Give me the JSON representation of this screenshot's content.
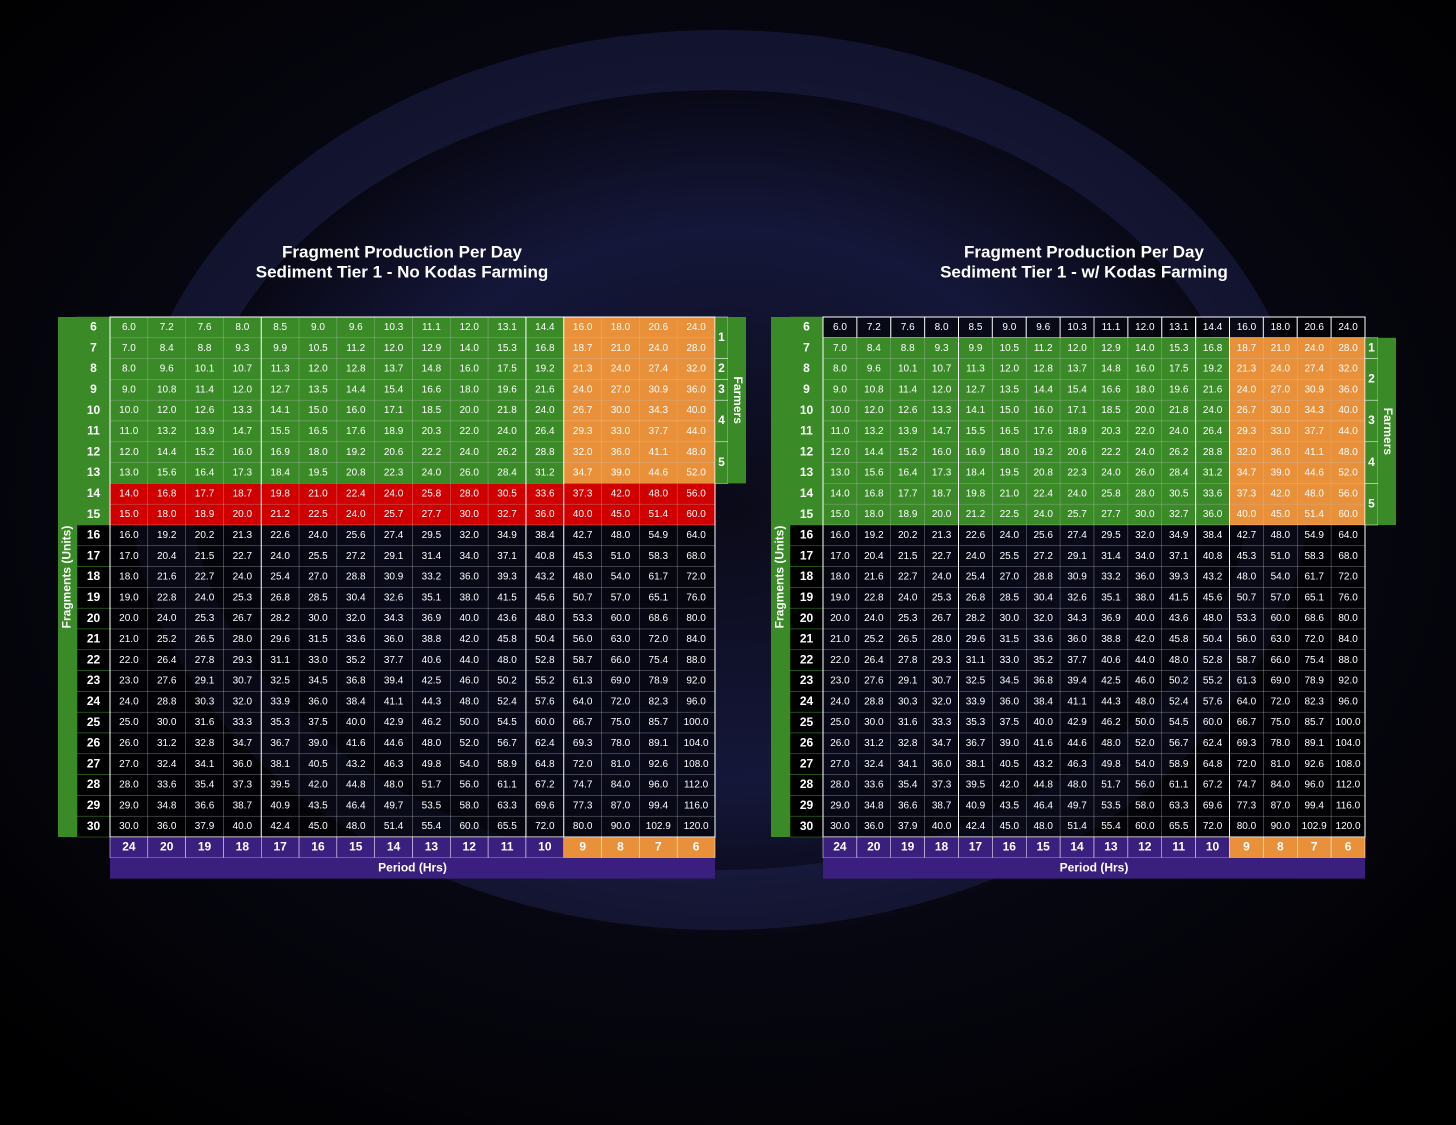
{
  "tables": [
    {
      "title": "Fragment Production Per Day",
      "subtitle": "Sediment Tier 1 - No Kodas Farming",
      "y_axis_label": "Fragments (Units)",
      "x_axis_label": "Period (Hrs)",
      "side_label": "Farmers",
      "farmer_levels": [
        1,
        2,
        3,
        4,
        5
      ],
      "periods": [
        24,
        20,
        19,
        18,
        17,
        16,
        15,
        14,
        13,
        12,
        11,
        10,
        9,
        8,
        7,
        6
      ],
      "fragments": [
        6,
        7,
        8,
        9,
        10,
        11,
        12,
        13,
        14,
        15,
        16,
        17,
        18,
        19,
        20,
        21,
        22,
        23,
        24,
        25,
        26,
        27,
        28,
        29,
        30
      ],
      "cells": [
        [
          "6.0",
          "7.2",
          "7.6",
          "8.0",
          "8.5",
          "9.0",
          "9.6",
          "10.3",
          "11.1",
          "12.0",
          "13.1",
          "14.4",
          "16.0",
          "18.0",
          "20.6",
          "24.0"
        ],
        [
          "7.0",
          "8.4",
          "8.8",
          "9.3",
          "9.9",
          "10.5",
          "11.2",
          "12.0",
          "12.9",
          "14.0",
          "15.3",
          "16.8",
          "18.7",
          "21.0",
          "24.0",
          "28.0"
        ],
        [
          "8.0",
          "9.6",
          "10.1",
          "10.7",
          "11.3",
          "12.0",
          "12.8",
          "13.7",
          "14.8",
          "16.0",
          "17.5",
          "19.2",
          "21.3",
          "24.0",
          "27.4",
          "32.0"
        ],
        [
          "9.0",
          "10.8",
          "11.4",
          "12.0",
          "12.7",
          "13.5",
          "14.4",
          "15.4",
          "16.6",
          "18.0",
          "19.6",
          "21.6",
          "24.0",
          "27.0",
          "30.9",
          "36.0"
        ],
        [
          "10.0",
          "12.0",
          "12.6",
          "13.3",
          "14.1",
          "15.0",
          "16.0",
          "17.1",
          "18.5",
          "20.0",
          "21.8",
          "24.0",
          "26.7",
          "30.0",
          "34.3",
          "40.0"
        ],
        [
          "11.0",
          "13.2",
          "13.9",
          "14.7",
          "15.5",
          "16.5",
          "17.6",
          "18.9",
          "20.3",
          "22.0",
          "24.0",
          "26.4",
          "29.3",
          "33.0",
          "37.7",
          "44.0"
        ],
        [
          "12.0",
          "14.4",
          "15.2",
          "16.0",
          "16.9",
          "18.0",
          "19.2",
          "20.6",
          "22.2",
          "24.0",
          "26.2",
          "28.8",
          "32.0",
          "36.0",
          "41.1",
          "48.0"
        ],
        [
          "13.0",
          "15.6",
          "16.4",
          "17.3",
          "18.4",
          "19.5",
          "20.8",
          "22.3",
          "24.0",
          "26.0",
          "28.4",
          "31.2",
          "34.7",
          "39.0",
          "44.6",
          "52.0"
        ],
        [
          "14.0",
          "16.8",
          "17.7",
          "18.7",
          "19.8",
          "21.0",
          "22.4",
          "24.0",
          "25.8",
          "28.0",
          "30.5",
          "33.6",
          "37.3",
          "42.0",
          "48.0",
          "56.0"
        ],
        [
          "15.0",
          "18.0",
          "18.9",
          "20.0",
          "21.2",
          "22.5",
          "24.0",
          "25.7",
          "27.7",
          "30.0",
          "32.7",
          "36.0",
          "40.0",
          "45.0",
          "51.4",
          "60.0"
        ],
        [
          "16.0",
          "19.2",
          "20.2",
          "21.3",
          "22.6",
          "24.0",
          "25.6",
          "27.4",
          "29.5",
          "32.0",
          "34.9",
          "38.4",
          "42.7",
          "48.0",
          "54.9",
          "64.0"
        ],
        [
          "17.0",
          "20.4",
          "21.5",
          "22.7",
          "24.0",
          "25.5",
          "27.2",
          "29.1",
          "31.4",
          "34.0",
          "37.1",
          "40.8",
          "45.3",
          "51.0",
          "58.3",
          "68.0"
        ],
        [
          "18.0",
          "21.6",
          "22.7",
          "24.0",
          "25.4",
          "27.0",
          "28.8",
          "30.9",
          "33.2",
          "36.0",
          "39.3",
          "43.2",
          "48.0",
          "54.0",
          "61.7",
          "72.0"
        ],
        [
          "19.0",
          "22.8",
          "24.0",
          "25.3",
          "26.8",
          "28.5",
          "30.4",
          "32.6",
          "35.1",
          "38.0",
          "41.5",
          "45.6",
          "50.7",
          "57.0",
          "65.1",
          "76.0"
        ],
        [
          "20.0",
          "24.0",
          "25.3",
          "26.7",
          "28.2",
          "30.0",
          "32.0",
          "34.3",
          "36.9",
          "40.0",
          "43.6",
          "48.0",
          "53.3",
          "60.0",
          "68.6",
          "80.0"
        ],
        [
          "21.0",
          "25.2",
          "26.5",
          "28.0",
          "29.6",
          "31.5",
          "33.6",
          "36.0",
          "38.8",
          "42.0",
          "45.8",
          "50.4",
          "56.0",
          "63.0",
          "72.0",
          "84.0"
        ],
        [
          "22.0",
          "26.4",
          "27.8",
          "29.3",
          "31.1",
          "33.0",
          "35.2",
          "37.7",
          "40.6",
          "44.0",
          "48.0",
          "52.8",
          "58.7",
          "66.0",
          "75.4",
          "88.0"
        ],
        [
          "23.0",
          "27.6",
          "29.1",
          "30.7",
          "32.5",
          "34.5",
          "36.8",
          "39.4",
          "42.5",
          "46.0",
          "50.2",
          "55.2",
          "61.3",
          "69.0",
          "78.9",
          "92.0"
        ],
        [
          "24.0",
          "28.8",
          "30.3",
          "32.0",
          "33.9",
          "36.0",
          "38.4",
          "41.1",
          "44.3",
          "48.0",
          "52.4",
          "57.6",
          "64.0",
          "72.0",
          "82.3",
          "96.0"
        ],
        [
          "25.0",
          "30.0",
          "31.6",
          "33.3",
          "35.3",
          "37.5",
          "40.0",
          "42.9",
          "46.2",
          "50.0",
          "54.5",
          "60.0",
          "66.7",
          "75.0",
          "85.7",
          "100.0"
        ],
        [
          "26.0",
          "31.2",
          "32.8",
          "34.7",
          "36.7",
          "39.0",
          "41.6",
          "44.6",
          "48.0",
          "52.0",
          "56.7",
          "62.4",
          "69.3",
          "78.0",
          "89.1",
          "104.0"
        ],
        [
          "27.0",
          "32.4",
          "34.1",
          "36.0",
          "38.1",
          "40.5",
          "43.2",
          "46.3",
          "49.8",
          "54.0",
          "58.9",
          "64.8",
          "72.0",
          "81.0",
          "92.6",
          "108.0"
        ],
        [
          "28.0",
          "33.6",
          "35.4",
          "37.3",
          "39.5",
          "42.0",
          "44.8",
          "48.0",
          "51.7",
          "56.0",
          "61.1",
          "67.2",
          "74.7",
          "84.0",
          "96.0",
          "112.0"
        ],
        [
          "29.0",
          "34.8",
          "36.6",
          "38.7",
          "40.9",
          "43.5",
          "46.4",
          "49.7",
          "53.5",
          "58.0",
          "63.3",
          "69.6",
          "77.3",
          "87.0",
          "99.4",
          "116.0"
        ],
        [
          "30.0",
          "36.0",
          "37.9",
          "40.0",
          "42.4",
          "45.0",
          "48.0",
          "51.4",
          "55.4",
          "60.0",
          "65.5",
          "72.0",
          "80.0",
          "90.0",
          "102.9",
          "120.0"
        ]
      ]
    },
    {
      "title": "Fragment Production Per Day",
      "subtitle": "Sediment Tier 1 - w/ Kodas Farming",
      "y_axis_label": "Fragments (Units)",
      "x_axis_label": "Period (Hrs)",
      "side_label": "Farmers",
      "farmer_levels": [
        1,
        2,
        3,
        4,
        5
      ],
      "periods": [
        24,
        20,
        19,
        18,
        17,
        16,
        15,
        14,
        13,
        12,
        11,
        10,
        9,
        8,
        7,
        6
      ],
      "fragments": [
        6,
        7,
        8,
        9,
        10,
        11,
        12,
        13,
        14,
        15,
        16,
        17,
        18,
        19,
        20,
        21,
        22,
        23,
        24,
        25,
        26,
        27,
        28,
        29,
        30
      ],
      "cells": [
        [
          "6.0",
          "7.2",
          "7.6",
          "8.0",
          "8.5",
          "9.0",
          "9.6",
          "10.3",
          "11.1",
          "12.0",
          "13.1",
          "14.4",
          "16.0",
          "18.0",
          "20.6",
          "24.0"
        ],
        [
          "7.0",
          "8.4",
          "8.8",
          "9.3",
          "9.9",
          "10.5",
          "11.2",
          "12.0",
          "12.9",
          "14.0",
          "15.3",
          "16.8",
          "18.7",
          "21.0",
          "24.0",
          "28.0"
        ],
        [
          "8.0",
          "9.6",
          "10.1",
          "10.7",
          "11.3",
          "12.0",
          "12.8",
          "13.7",
          "14.8",
          "16.0",
          "17.5",
          "19.2",
          "21.3",
          "24.0",
          "27.4",
          "32.0"
        ],
        [
          "9.0",
          "10.8",
          "11.4",
          "12.0",
          "12.7",
          "13.5",
          "14.4",
          "15.4",
          "16.6",
          "18.0",
          "19.6",
          "21.6",
          "24.0",
          "27.0",
          "30.9",
          "36.0"
        ],
        [
          "10.0",
          "12.0",
          "12.6",
          "13.3",
          "14.1",
          "15.0",
          "16.0",
          "17.1",
          "18.5",
          "20.0",
          "21.8",
          "24.0",
          "26.7",
          "30.0",
          "34.3",
          "40.0"
        ],
        [
          "11.0",
          "13.2",
          "13.9",
          "14.7",
          "15.5",
          "16.5",
          "17.6",
          "18.9",
          "20.3",
          "22.0",
          "24.0",
          "26.4",
          "29.3",
          "33.0",
          "37.7",
          "44.0"
        ],
        [
          "12.0",
          "14.4",
          "15.2",
          "16.0",
          "16.9",
          "18.0",
          "19.2",
          "20.6",
          "22.2",
          "24.0",
          "26.2",
          "28.8",
          "32.0",
          "36.0",
          "41.1",
          "48.0"
        ],
        [
          "13.0",
          "15.6",
          "16.4",
          "17.3",
          "18.4",
          "19.5",
          "20.8",
          "22.3",
          "24.0",
          "26.0",
          "28.4",
          "31.2",
          "34.7",
          "39.0",
          "44.6",
          "52.0"
        ],
        [
          "14.0",
          "16.8",
          "17.7",
          "18.7",
          "19.8",
          "21.0",
          "22.4",
          "24.0",
          "25.8",
          "28.0",
          "30.5",
          "33.6",
          "37.3",
          "42.0",
          "48.0",
          "56.0"
        ],
        [
          "15.0",
          "18.0",
          "18.9",
          "20.0",
          "21.2",
          "22.5",
          "24.0",
          "25.7",
          "27.7",
          "30.0",
          "32.7",
          "36.0",
          "40.0",
          "45.0",
          "51.4",
          "60.0"
        ],
        [
          "16.0",
          "19.2",
          "20.2",
          "21.3",
          "22.6",
          "24.0",
          "25.6",
          "27.4",
          "29.5",
          "32.0",
          "34.9",
          "38.4",
          "42.7",
          "48.0",
          "54.9",
          "64.0"
        ],
        [
          "17.0",
          "20.4",
          "21.5",
          "22.7",
          "24.0",
          "25.5",
          "27.2",
          "29.1",
          "31.4",
          "34.0",
          "37.1",
          "40.8",
          "45.3",
          "51.0",
          "58.3",
          "68.0"
        ],
        [
          "18.0",
          "21.6",
          "22.7",
          "24.0",
          "25.4",
          "27.0",
          "28.8",
          "30.9",
          "33.2",
          "36.0",
          "39.3",
          "43.2",
          "48.0",
          "54.0",
          "61.7",
          "72.0"
        ],
        [
          "19.0",
          "22.8",
          "24.0",
          "25.3",
          "26.8",
          "28.5",
          "30.4",
          "32.6",
          "35.1",
          "38.0",
          "41.5",
          "45.6",
          "50.7",
          "57.0",
          "65.1",
          "76.0"
        ],
        [
          "20.0",
          "24.0",
          "25.3",
          "26.7",
          "28.2",
          "30.0",
          "32.0",
          "34.3",
          "36.9",
          "40.0",
          "43.6",
          "48.0",
          "53.3",
          "60.0",
          "68.6",
          "80.0"
        ],
        [
          "21.0",
          "25.2",
          "26.5",
          "28.0",
          "29.6",
          "31.5",
          "33.6",
          "36.0",
          "38.8",
          "42.0",
          "45.8",
          "50.4",
          "56.0",
          "63.0",
          "72.0",
          "84.0"
        ],
        [
          "22.0",
          "26.4",
          "27.8",
          "29.3",
          "31.1",
          "33.0",
          "35.2",
          "37.7",
          "40.6",
          "44.0",
          "48.0",
          "52.8",
          "58.7",
          "66.0",
          "75.4",
          "88.0"
        ],
        [
          "23.0",
          "27.6",
          "29.1",
          "30.7",
          "32.5",
          "34.5",
          "36.8",
          "39.4",
          "42.5",
          "46.0",
          "50.2",
          "55.2",
          "61.3",
          "69.0",
          "78.9",
          "92.0"
        ],
        [
          "24.0",
          "28.8",
          "30.3",
          "32.0",
          "33.9",
          "36.0",
          "38.4",
          "41.1",
          "44.3",
          "48.0",
          "52.4",
          "57.6",
          "64.0",
          "72.0",
          "82.3",
          "96.0"
        ],
        [
          "25.0",
          "30.0",
          "31.6",
          "33.3",
          "35.3",
          "37.5",
          "40.0",
          "42.9",
          "46.2",
          "50.0",
          "54.5",
          "60.0",
          "66.7",
          "75.0",
          "85.7",
          "100.0"
        ],
        [
          "26.0",
          "31.2",
          "32.8",
          "34.7",
          "36.7",
          "39.0",
          "41.6",
          "44.6",
          "48.0",
          "52.0",
          "56.7",
          "62.4",
          "69.3",
          "78.0",
          "89.1",
          "104.0"
        ],
        [
          "27.0",
          "32.4",
          "34.1",
          "36.0",
          "38.1",
          "40.5",
          "43.2",
          "46.3",
          "49.8",
          "54.0",
          "58.9",
          "64.8",
          "72.0",
          "81.0",
          "92.6",
          "108.0"
        ],
        [
          "28.0",
          "33.6",
          "35.4",
          "37.3",
          "39.5",
          "42.0",
          "44.8",
          "48.0",
          "51.7",
          "56.0",
          "61.1",
          "67.2",
          "74.7",
          "84.0",
          "96.0",
          "112.0"
        ],
        [
          "29.0",
          "34.8",
          "36.6",
          "38.7",
          "40.9",
          "43.5",
          "46.4",
          "49.7",
          "53.5",
          "58.0",
          "63.3",
          "69.6",
          "77.3",
          "87.0",
          "99.4",
          "116.0"
        ],
        [
          "30.0",
          "36.0",
          "37.9",
          "40.0",
          "42.4",
          "45.0",
          "48.0",
          "51.4",
          "55.4",
          "60.0",
          "65.5",
          "72.0",
          "80.0",
          "90.0",
          "102.9",
          "120.0"
        ]
      ]
    }
  ]
}
